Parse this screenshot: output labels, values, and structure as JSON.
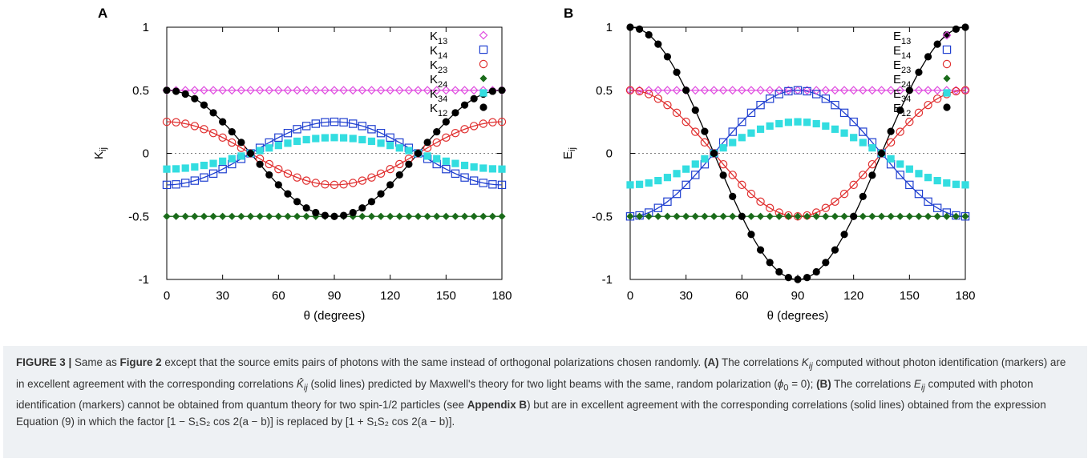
{
  "chart_data": [
    {
      "panel_label": "A",
      "type": "scatter",
      "xlabel": "θ (degrees)",
      "ylabel": "K",
      "ylabel_sub": "ij",
      "xlim": [
        0,
        180
      ],
      "ylim": [
        -1,
        1
      ],
      "x_ticks": [
        "0",
        "30",
        "60",
        "90",
        "120",
        "150",
        "180"
      ],
      "y_ticks": [
        "1",
        "0.5",
        "0",
        "-0.5",
        "-1"
      ],
      "zero_line": true,
      "legend_position": "top-right",
      "theta_step_deg": 5,
      "series": [
        {
          "name": "K",
          "sub": "13",
          "marker": "diamond-open",
          "color": "#e050e0",
          "curve": "0.5",
          "fit_line": true
        },
        {
          "name": "K",
          "sub": "14",
          "marker": "square-open",
          "color": "#2040d0",
          "curve": "-0.25cos2t",
          "fit_line": true
        },
        {
          "name": "K",
          "sub": "23",
          "marker": "circle-open",
          "color": "#e03030",
          "curve": "0.25cos2t",
          "fit_line": true
        },
        {
          "name": "K",
          "sub": "24",
          "marker": "diamond-filled",
          "color": "#1a6b1a",
          "curve": "-0.5",
          "fit_line": true
        },
        {
          "name": "K",
          "sub": "34",
          "marker": "square-filled",
          "color": "#33dde0",
          "curve": "-0.125cos2t",
          "fit_line": false
        },
        {
          "name": "K",
          "sub": "12",
          "marker": "circle-filled",
          "color": "#000000",
          "curve": "0.5cos2t",
          "fit_line": true
        }
      ]
    },
    {
      "panel_label": "B",
      "type": "scatter",
      "xlabel": "θ (degrees)",
      "ylabel": "E",
      "ylabel_sub": "ij",
      "xlim": [
        0,
        180
      ],
      "ylim": [
        -1,
        1
      ],
      "x_ticks": [
        "0",
        "30",
        "60",
        "90",
        "120",
        "150",
        "180"
      ],
      "y_ticks": [
        "1",
        "0.5",
        "0",
        "-0.5",
        "-1"
      ],
      "zero_line": true,
      "legend_position": "top-right",
      "theta_step_deg": 5,
      "series": [
        {
          "name": "E",
          "sub": "13",
          "marker": "diamond-open",
          "color": "#e050e0",
          "curve": "0.5",
          "fit_line": true
        },
        {
          "name": "E",
          "sub": "14",
          "marker": "square-open",
          "color": "#2040d0",
          "curve": "-0.5cos2t",
          "fit_line": true
        },
        {
          "name": "E",
          "sub": "23",
          "marker": "circle-open",
          "color": "#e03030",
          "curve": "0.5cos2t",
          "fit_line": true
        },
        {
          "name": "E",
          "sub": "24",
          "marker": "diamond-filled",
          "color": "#1a6b1a",
          "curve": "-0.5",
          "fit_line": true
        },
        {
          "name": "E",
          "sub": "34",
          "marker": "square-filled",
          "color": "#33dde0",
          "curve": "-0.25cos2t",
          "fit_line": false
        },
        {
          "name": "E",
          "sub": "12",
          "marker": "circle-filled",
          "color": "#000000",
          "curve": "cos2t",
          "fit_line": true
        }
      ]
    }
  ],
  "caption": {
    "label": "FIGURE 3 |",
    "t1": " Same as ",
    "fig2": "Figure 2",
    "t2": " except that the source emits pairs of photons with the same instead of orthogonal polarizations chosen randomly. ",
    "a": "(A)",
    "t3": " The correlations ",
    "kij": "K",
    "kij_sub": "ij",
    "t4": " computed without photon identification (markers) are in excellent agreement with the corresponding correlations ",
    "khat": "K̂",
    "khat_sub": "ij",
    "t5": " (solid lines) predicted by Maxwell's theory for two light beams with the same, random polarization (",
    "phi": "ϕ",
    "phi_sub": "0",
    "t6": " = 0); ",
    "b": "(B)",
    "t7": " The correlations ",
    "eij": "E",
    "eij_sub": "ij",
    "t8": " computed with photon identification (markers) cannot be obtained from quantum theory for two spin-1/2 particles (see ",
    "appb": "Appendix B",
    "t9": ") but are in excellent agreement with the corresponding correlations (solid lines) obtained from the expression Equation (9) in which the factor ",
    "f1": "[1 − S₁S₂ cos 2(a − b)]",
    "t10": " is replaced by ",
    "f2": "[1 + S₁S₂ cos 2(a − b)]",
    "t11": "."
  }
}
